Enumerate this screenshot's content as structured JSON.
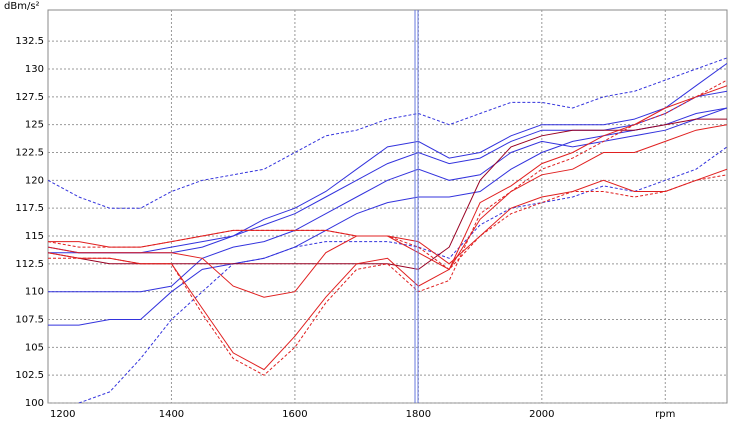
{
  "chart_data": {
    "type": "line",
    "y_label": "dBm/s²",
    "x": [
      1200,
      1250,
      1300,
      1350,
      1400,
      1450,
      1500,
      1550,
      1600,
      1650,
      1700,
      1750,
      1800,
      1850,
      1900,
      1950,
      2000,
      2050,
      2100,
      2150,
      2200,
      2250,
      2300
    ],
    "xlim": [
      1200,
      2300
    ],
    "xticks": [
      1200,
      1400,
      1600,
      1800,
      2000,
      {
        "value": 2200,
        "label": "rpm"
      }
    ],
    "ylim": [
      100,
      135.3
    ],
    "yticks": [
      100,
      102.5,
      105,
      107.5,
      110,
      112.5,
      115,
      117.5,
      120,
      122.5,
      125,
      127.5,
      130,
      132.5
    ],
    "grid": true,
    "cursor": 1797,
    "series": [
      {
        "color": "#3333dd",
        "dashed": true,
        "values": [
          120,
          118.5,
          117.5,
          117.5,
          119,
          120,
          120.5,
          121,
          122.5,
          124,
          124.5,
          125.5,
          126,
          125,
          126,
          127,
          127,
          126.5,
          127.5,
          128,
          129,
          130,
          131
        ]
      },
      {
        "color": "#3333dd",
        "dashed": true,
        "values": [
          null,
          100,
          101,
          104,
          107.5,
          110,
          112.5,
          113,
          114,
          114.5,
          114.5,
          114.5,
          114,
          113,
          116,
          117.5,
          118,
          118.5,
          119.5,
          119,
          120,
          121,
          123
        ]
      },
      {
        "color": "#3333dd",
        "dashed": false,
        "values": [
          113.5,
          113.5,
          113.5,
          113.5,
          113.5,
          114,
          115,
          116.5,
          117.5,
          119,
          121,
          123,
          123.5,
          122,
          122.5,
          124,
          125,
          125,
          125,
          125.5,
          126.5,
          128.5,
          130.5
        ]
      },
      {
        "color": "#3333dd",
        "dashed": false,
        "values": [
          114,
          113.5,
          113.5,
          113.5,
          114,
          114.5,
          115,
          116,
          117,
          118.5,
          120,
          121.5,
          122.5,
          121.5,
          122,
          123.5,
          124.5,
          124.5,
          124.5,
          125,
          126,
          127.5,
          128
        ]
      },
      {
        "color": "#3333dd",
        "dashed": false,
        "values": [
          110,
          110,
          110,
          110,
          110.5,
          113,
          114,
          114.5,
          115.5,
          117,
          118.5,
          120,
          121,
          120,
          120.5,
          122.5,
          123.5,
          123,
          123.5,
          124,
          124.5,
          125.5,
          126.5
        ]
      },
      {
        "color": "#3333dd",
        "dashed": false,
        "values": [
          107,
          107,
          107.5,
          107.5,
          110,
          112,
          112.5,
          113,
          114,
          115.5,
          117,
          118,
          118.5,
          118.5,
          119,
          121,
          122.5,
          123.5,
          124,
          124.5,
          125,
          126,
          126.5
        ]
      },
      {
        "color": "#990022",
        "dashed": false,
        "values": [
          113.5,
          113,
          112.5,
          112.5,
          112.5,
          112.5,
          112.5,
          112.5,
          112.5,
          112.5,
          112.5,
          112.5,
          112,
          114,
          120,
          123,
          124,
          124.5,
          124.5,
          124.5,
          125,
          125.5,
          125.5
        ]
      },
      {
        "color": "#e02020",
        "dashed": true,
        "values": [
          113,
          113,
          113,
          112.5,
          112.5,
          108,
          104,
          102.5,
          105,
          109,
          112,
          112.5,
          110,
          111,
          117,
          119,
          121,
          122,
          123.5,
          125,
          126,
          127.5,
          129
        ]
      },
      {
        "color": "#e02020",
        "dashed": false,
        "values": [
          113.5,
          113,
          113,
          112.5,
          112.5,
          108.5,
          104.5,
          103,
          106,
          109.5,
          112.5,
          113,
          110.5,
          112,
          118,
          119.5,
          121.5,
          122.5,
          124,
          125,
          126.5,
          127.5,
          128.5
        ]
      },
      {
        "color": "#e02020",
        "dashed": false,
        "values": [
          114,
          113.5,
          113.5,
          113.5,
          113.5,
          113,
          110.5,
          109.5,
          110,
          113.5,
          115,
          115,
          113.5,
          112,
          116.5,
          119,
          120.5,
          121,
          122.5,
          122.5,
          123.5,
          124.5,
          125
        ]
      },
      {
        "color": "#e02020",
        "dashed": false,
        "values": [
          114.5,
          114.5,
          114,
          114,
          114.5,
          115,
          115.5,
          115.5,
          115.5,
          115.5,
          115,
          115,
          114.5,
          112.5,
          115,
          117.5,
          118.5,
          119,
          120,
          119,
          119,
          120,
          121
        ]
      },
      {
        "color": "#e02020",
        "dashed": true,
        "values": [
          114.5,
          114,
          114,
          114,
          114.5,
          115,
          115.5,
          115.5,
          115.5,
          115.5,
          115,
          115,
          114,
          112,
          115,
          117,
          118,
          119,
          119,
          118.5,
          119,
          120,
          120.5
        ]
      }
    ]
  }
}
